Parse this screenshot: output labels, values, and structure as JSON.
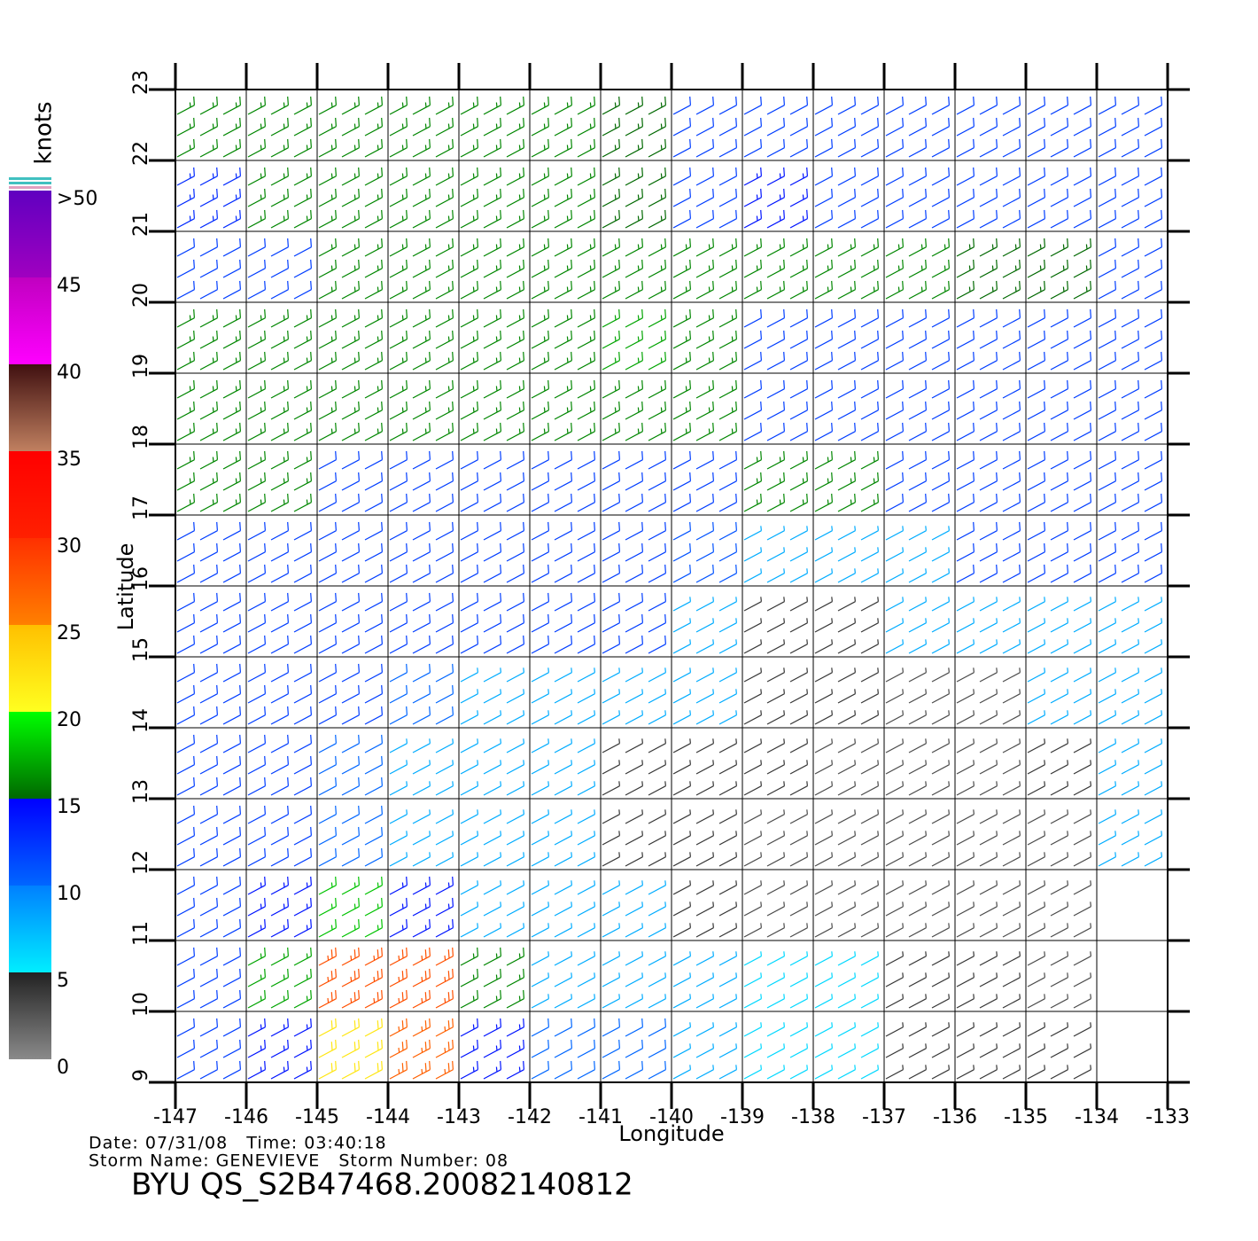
{
  "chart_data": {
    "type": "wind-barb",
    "title": "BYU QS_S2B47468.20082140812",
    "date_line": "Date: 07/31/08   Time: 03:40:18",
    "storm_line": "Storm Name: GENEVIEVE   Storm Number: 08",
    "xlabel": "Longitude",
    "ylabel": "Latitude",
    "xlim": [
      -147,
      -133
    ],
    "ylim": [
      9,
      23
    ],
    "xticks": [
      -147,
      -146,
      -145,
      -144,
      -143,
      -142,
      -141,
      -140,
      -139,
      -138,
      -137,
      -136,
      -135,
      -134,
      -133
    ],
    "yticks": [
      9,
      10,
      11,
      12,
      13,
      14,
      15,
      16,
      17,
      18,
      19,
      20,
      21,
      22,
      23
    ],
    "grid": true,
    "x": [
      -146.5,
      -145.5,
      -144.5,
      -143.5,
      -142.5,
      -141.5,
      -140.5,
      -139.5,
      -138.5,
      -137.5,
      -136.5,
      -135.5,
      -134.5,
      -133.5
    ],
    "y": [
      22.5,
      21.5,
      20.5,
      19.5,
      18.5,
      17.5,
      16.5,
      15.5,
      14.5,
      13.5,
      12.5,
      11.5,
      10.5,
      9.5
    ],
    "speed": [
      [
        16,
        16,
        16,
        16,
        16,
        16,
        15,
        12,
        12,
        12,
        12,
        12,
        12,
        12
      ],
      [
        13,
        16,
        16,
        16,
        16,
        16,
        15,
        12,
        14,
        12,
        12,
        12,
        12,
        12
      ],
      [
        12,
        12,
        16,
        16,
        16,
        16,
        16,
        16,
        16,
        16,
        16,
        15,
        15,
        12
      ],
      [
        16,
        16,
        16,
        16,
        16,
        16,
        17,
        16,
        12,
        12,
        12,
        12,
        12,
        12
      ],
      [
        16,
        16,
        16,
        16,
        16,
        16,
        16,
        16,
        12,
        12,
        12,
        12,
        12,
        12
      ],
      [
        16,
        16,
        12,
        12,
        12,
        12,
        12,
        12,
        16,
        16,
        12,
        12,
        12,
        12
      ],
      [
        12,
        12,
        12,
        12,
        12,
        12,
        12,
        11,
        8,
        8,
        8,
        12,
        12,
        12
      ],
      [
        12,
        12,
        12,
        12,
        12,
        12,
        12,
        8,
        4,
        4,
        8,
        8,
        8,
        8
      ],
      [
        12,
        12,
        12,
        10,
        8,
        8,
        8,
        8,
        4,
        4,
        3,
        3,
        8,
        8
      ],
      [
        12,
        12,
        10,
        8,
        8,
        8,
        4,
        4,
        4,
        3,
        3,
        3,
        4,
        8
      ],
      [
        12,
        12,
        10,
        8,
        8,
        8,
        4,
        4,
        3,
        3,
        3,
        3,
        3,
        8
      ],
      [
        12,
        14,
        18,
        14,
        8,
        8,
        8,
        4,
        3,
        3,
        3,
        3,
        3,
        null
      ],
      [
        12,
        17,
        28,
        28,
        16,
        8,
        8,
        8,
        6,
        6,
        4,
        4,
        3,
        null
      ],
      [
        12,
        14,
        22,
        27,
        14,
        10,
        10,
        8,
        6,
        6,
        4,
        4,
        4,
        null
      ]
    ],
    "colorbar": {
      "label": "knots",
      "ticks": [
        0,
        5,
        10,
        15,
        20,
        25,
        30,
        35,
        40,
        45,
        {
          "value": 50,
          "label": ">50"
        }
      ],
      "colors": [
        [
          "#8a8a8a",
          "#222222"
        ],
        [
          "#00eeff",
          "#0080ff"
        ],
        [
          "#0066ff",
          "#0000ff"
        ],
        [
          "#006800",
          "#00ff00"
        ],
        [
          "#ffff20",
          "#ffc000"
        ],
        [
          "#ff8000",
          "#ff3000"
        ],
        [
          "#ff2000",
          "#ff0000"
        ],
        [
          "#c08060",
          "#401010"
        ],
        [
          "#ff00ff",
          "#c000c0"
        ],
        [
          "#a000c0",
          "#6000c0"
        ]
      ]
    }
  }
}
